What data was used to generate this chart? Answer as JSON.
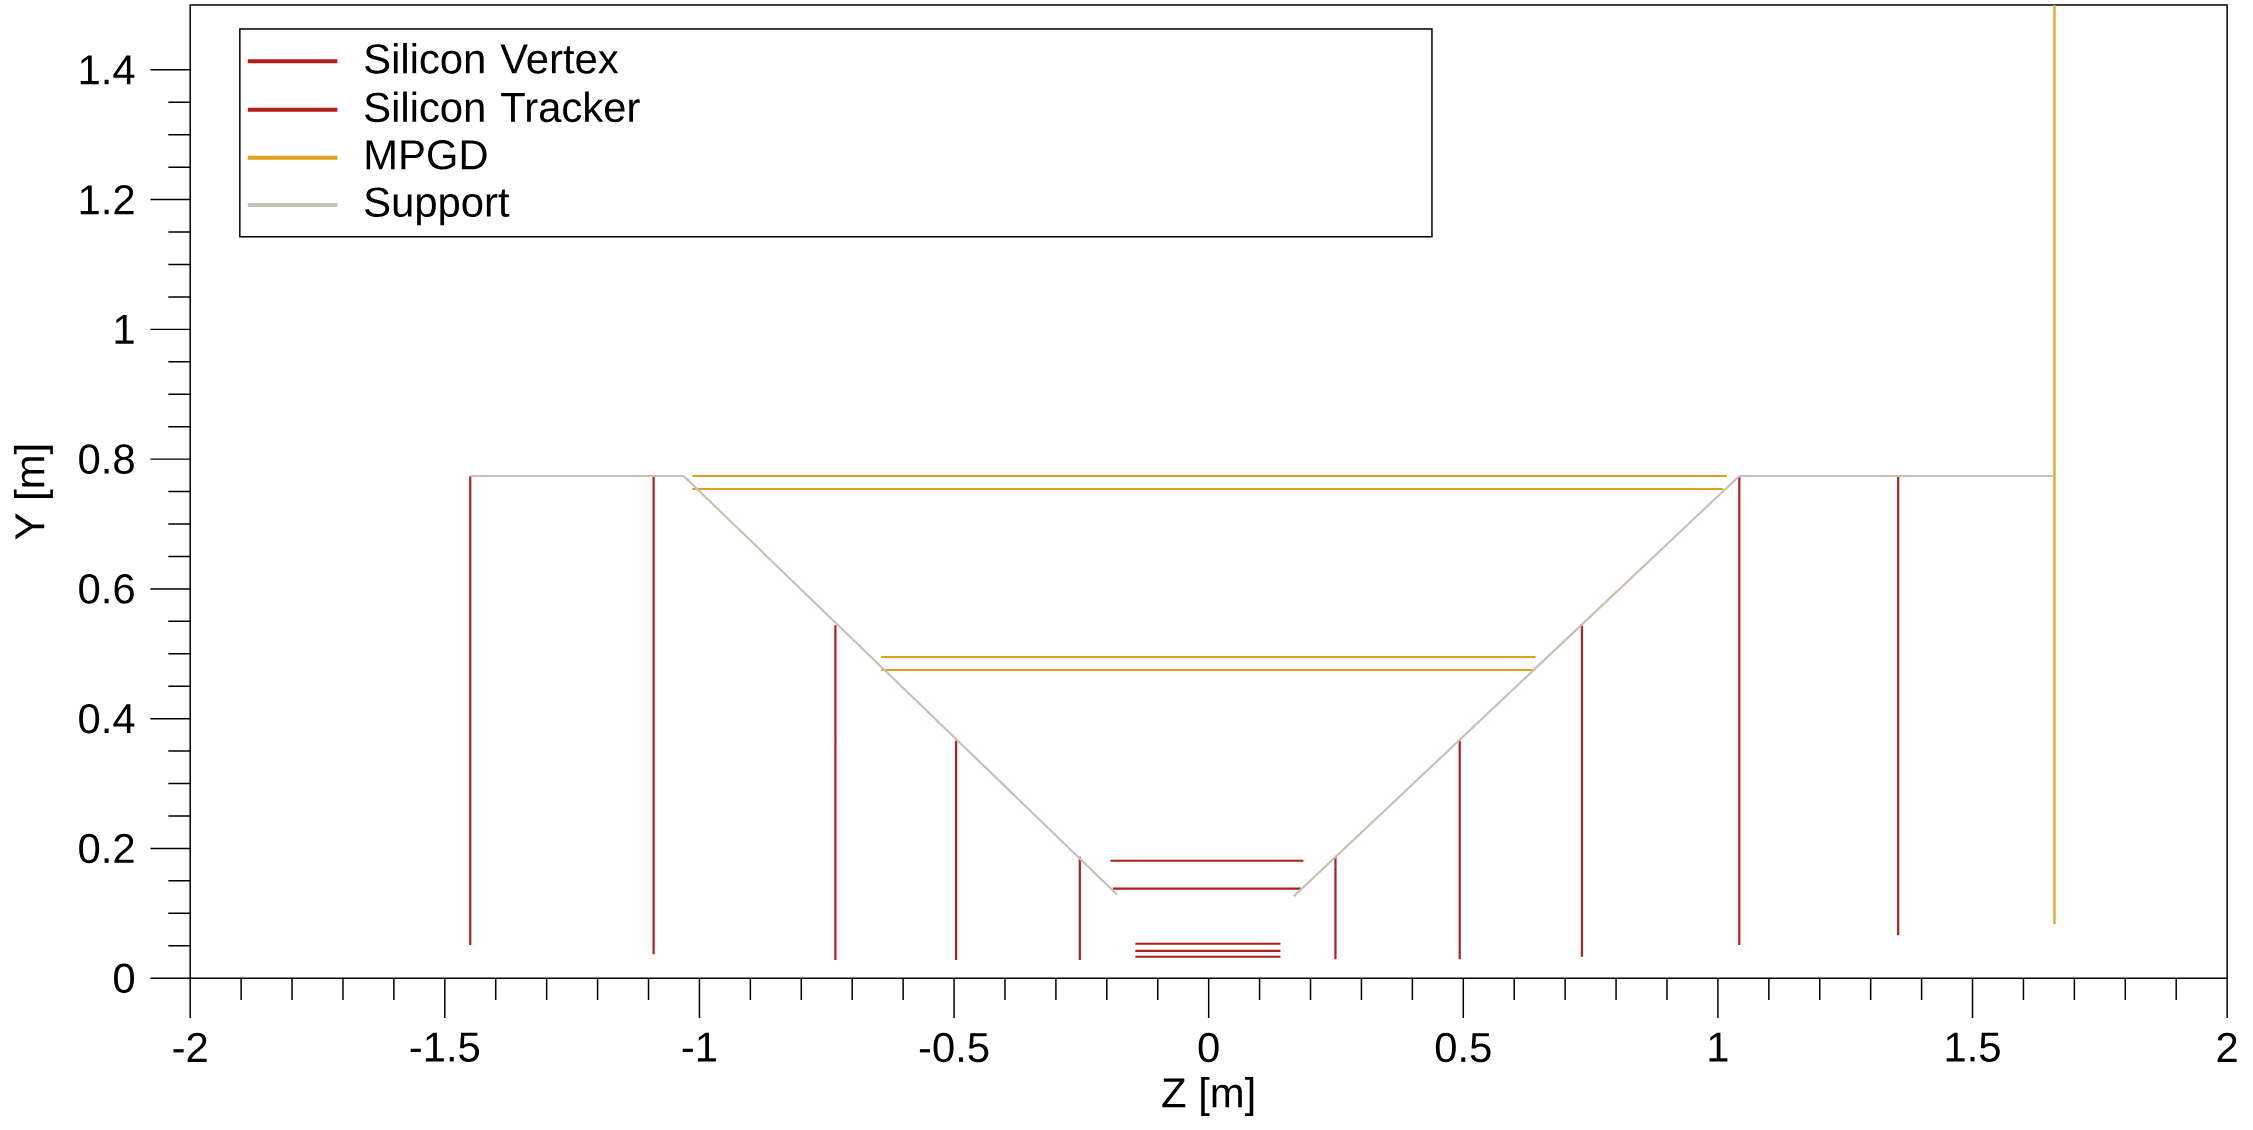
{
  "chart_data": {
    "type": "line",
    "xlabel": "Z [m]",
    "ylabel": "Y [m]",
    "xlim": [
      -2,
      2
    ],
    "ylim": [
      0,
      1.5
    ],
    "xticks": [
      -2,
      -1.5,
      -1,
      -0.5,
      0,
      0.5,
      1,
      1.5,
      2
    ],
    "yticks": [
      0,
      0.2,
      0.4,
      0.6,
      0.8,
      1,
      1.2,
      1.4
    ],
    "legend": "top left",
    "series": [
      {
        "name": "Silicon Vertex",
        "color": "#b01e1e",
        "x": [
          -0.144,
          0.141
        ],
        "values": [
          0.053,
          0.053
        ]
      },
      {
        "color": "#b01e1e",
        "x": [
          -0.144,
          0.141
        ],
        "values": [
          0.042,
          0.042
        ]
      },
      {
        "color": "#b01e1e",
        "x": [
          -0.144,
          0.141
        ],
        "values": [
          0.033,
          0.033
        ]
      },
      {
        "name": "Silicon Tracker",
        "color": "#b01e1e",
        "x": [
          -1.45,
          -1.45,
          null,
          -1.09,
          -1.09,
          null,
          -0.733,
          -0.733,
          null,
          -0.496,
          -0.496,
          null,
          -0.253,
          -0.253,
          null,
          -0.193,
          0.186,
          null,
          -0.188,
          0.181,
          null,
          0.249,
          0.249,
          null,
          0.493,
          0.493,
          null,
          0.733,
          0.733,
          null,
          1.042,
          1.042,
          null,
          1.354,
          1.354
        ],
        "values": [
          0.051,
          0.774,
          null,
          0.037,
          0.774,
          null,
          0.028,
          0.544,
          null,
          0.028,
          0.366,
          null,
          0.028,
          0.187,
          null,
          0.181,
          0.181,
          null,
          0.138,
          0.138,
          null,
          0.029,
          0.187,
          null,
          0.029,
          0.366,
          null,
          0.033,
          0.544,
          null,
          0.051,
          0.774,
          null,
          0.066,
          0.774
        ]
      },
      {
        "name": "MPGD",
        "color": "#dca11d",
        "x": [
          -1.014,
          1.017,
          null,
          -1.014,
          1.01,
          null,
          -0.643,
          0.642,
          null,
          -0.643,
          0.638,
          null,
          1.661,
          1.661
        ],
        "values": [
          0.774,
          0.774,
          null,
          0.754,
          0.754,
          null,
          0.495,
          0.495,
          null,
          0.475,
          0.475,
          null,
          0.083,
          1.5
        ]
      },
      {
        "name": "Support",
        "color": "#c9c1b8",
        "x": [
          -1.45,
          -1.031,
          -0.18,
          null,
          0.167,
          1.042,
          1.661
        ],
        "values": [
          0.774,
          0.774,
          0.129,
          null,
          0.126,
          0.774,
          0.774
        ]
      }
    ]
  }
}
